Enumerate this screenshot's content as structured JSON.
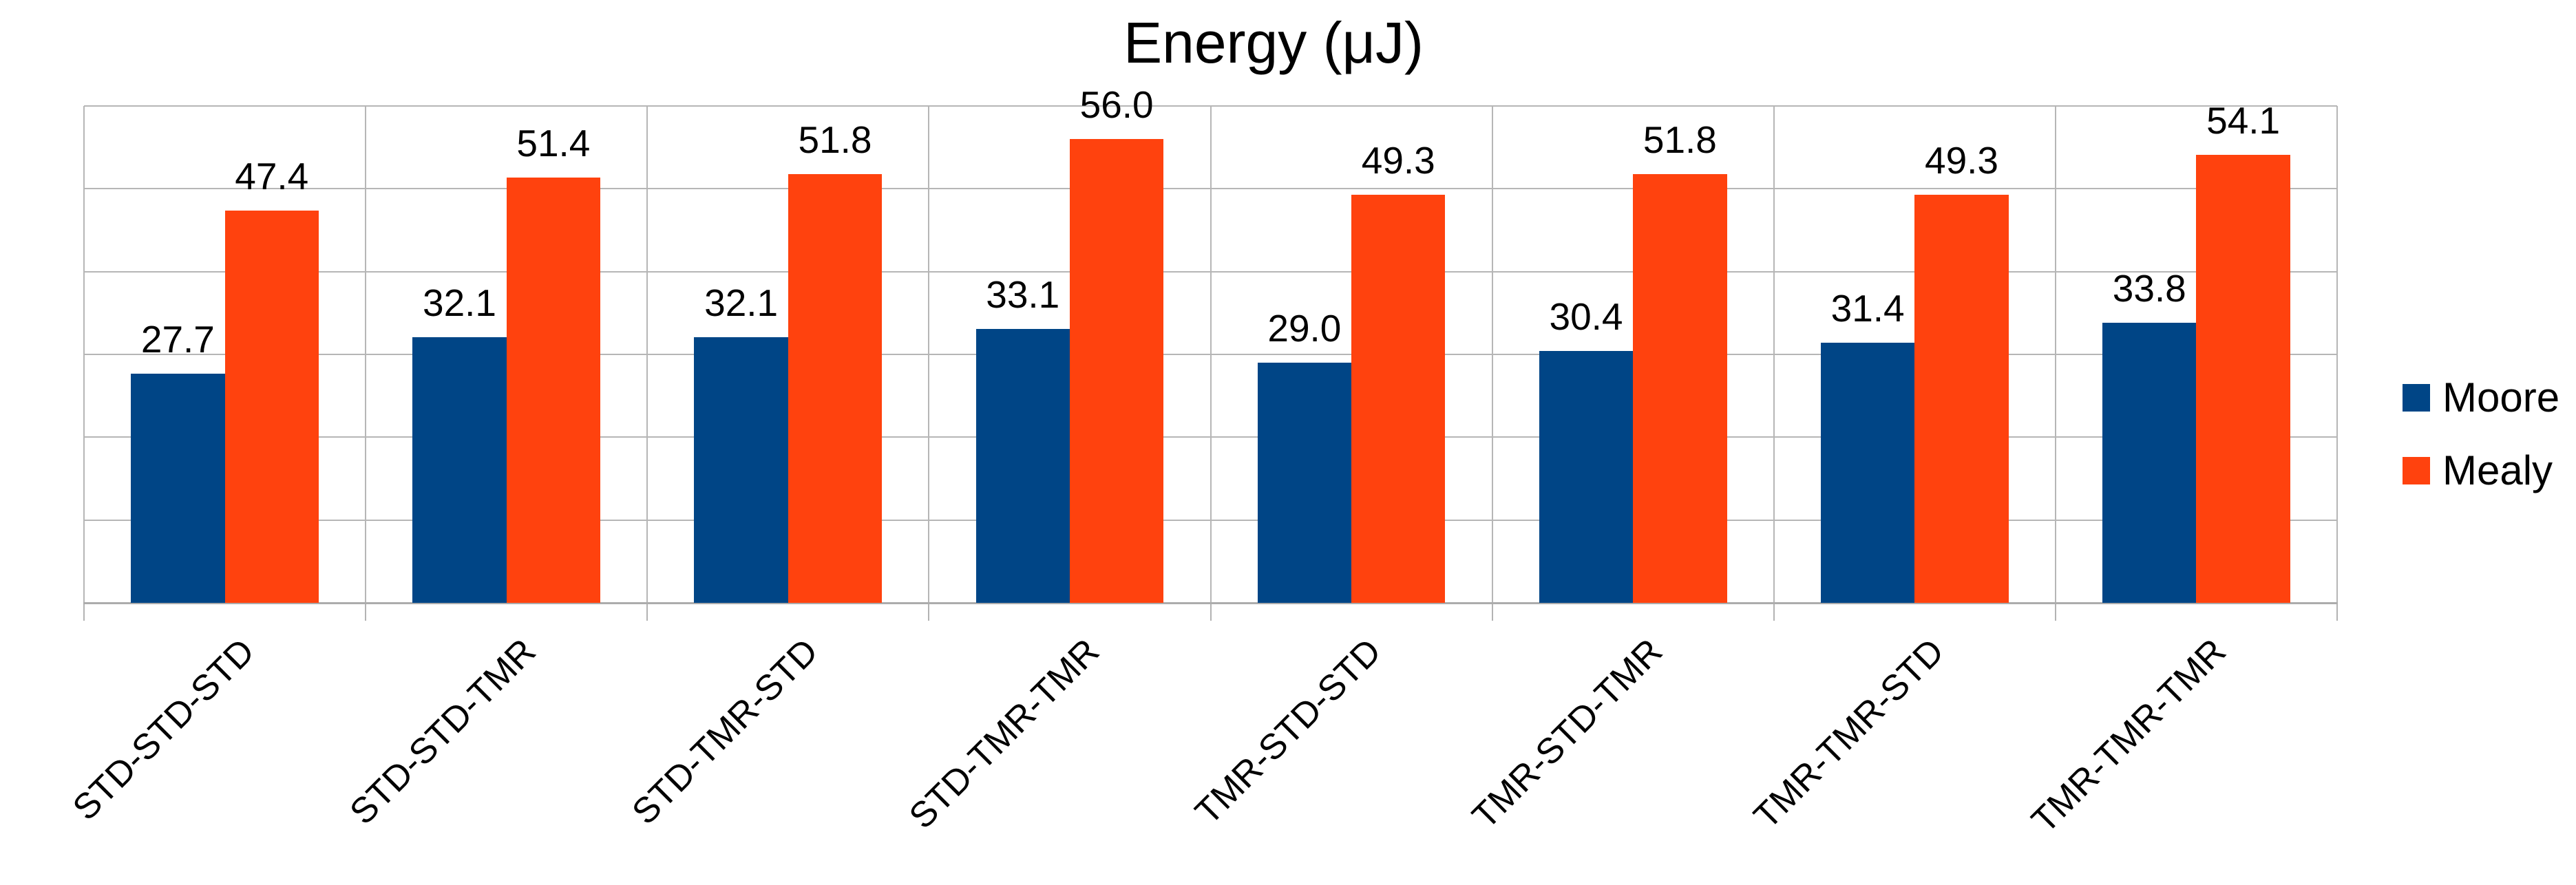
{
  "title": "Energy (μJ)",
  "legend": {
    "position": "right",
    "items": [
      {
        "label": "Moore",
        "color": "#004586"
      },
      {
        "label": "Mealy",
        "color": "#FF420E"
      }
    ]
  },
  "colors": {
    "series_moore": "#004586",
    "series_mealy": "#FF420E",
    "gridline": "#b6b6b6",
    "axis": "#acacac",
    "text": "#000000",
    "background": "#ffffff"
  },
  "chart_data": {
    "type": "bar",
    "title": "Energy (μJ)",
    "xlabel": "",
    "ylabel": "",
    "categories": [
      "STD-STD-STD",
      "STD-STD-TMR",
      "STD-TMR-STD",
      "STD-TMR-TMR",
      "TMR-STD-STD",
      "TMR-STD-TMR",
      "TMR-TMR-STD",
      "TMR-TMR-TMR"
    ],
    "series": [
      {
        "name": "Moore",
        "color": "#004586",
        "values": [
          27.7,
          32.1,
          32.1,
          33.1,
          29.0,
          30.4,
          31.4,
          33.8
        ]
      },
      {
        "name": "Mealy",
        "color": "#FF420E",
        "values": [
          47.4,
          51.4,
          51.8,
          56.0,
          49.3,
          51.8,
          49.3,
          54.1
        ]
      }
    ],
    "value_labels": "each bar labeled above with value to 1 decimal",
    "ylim": [
      0,
      60
    ],
    "gridline_step": 10,
    "grid": "horizontal and vertical light gray gridlines, no y-axis tick labels",
    "x_tick_label_rotation_deg": -45,
    "legend_position": "right, vertically centered",
    "legend_entries": [
      "Moore",
      "Mealy"
    ]
  }
}
